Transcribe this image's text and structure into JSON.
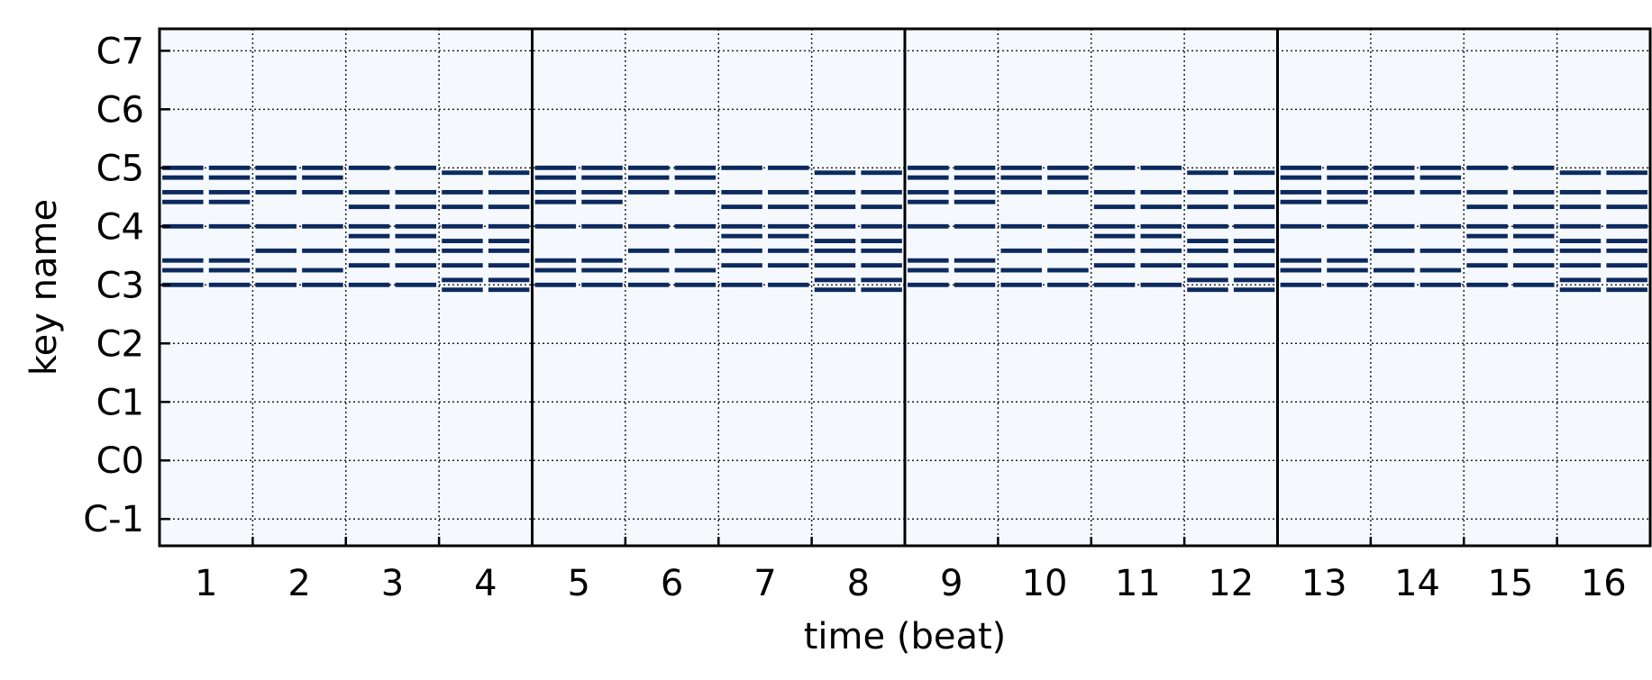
{
  "chart_data": {
    "type": "pianoroll",
    "xlabel": "time (beat)",
    "ylabel": "key name",
    "x_ticks": [
      "1",
      "2",
      "3",
      "4",
      "5",
      "6",
      "7",
      "8",
      "9",
      "10",
      "11",
      "12",
      "13",
      "14",
      "15",
      "16"
    ],
    "y_ticks": [
      {
        "label": "C-1",
        "pitch": 0
      },
      {
        "label": "C0",
        "pitch": 12
      },
      {
        "label": "C1",
        "pitch": 24
      },
      {
        "label": "C2",
        "pitch": 36
      },
      {
        "label": "C3",
        "pitch": 48
      },
      {
        "label": "C4",
        "pitch": 60
      },
      {
        "label": "C5",
        "pitch": 72
      },
      {
        "label": "C6",
        "pitch": 84
      },
      {
        "label": "C7",
        "pitch": 96
      }
    ],
    "xlim": [
      0,
      16
    ],
    "ylim": [
      -5.5,
      100.5
    ],
    "grid": true,
    "downbeat_lines": [
      4,
      8,
      12
    ],
    "note_length_beats": 0.5,
    "repeats_every_beats": 4,
    "pattern": [
      {
        "beat": 1,
        "pitches": [
          48,
          51,
          53,
          60,
          65,
          67,
          70,
          72
        ]
      },
      {
        "beat": 2,
        "pitches": [
          48,
          51,
          55,
          60,
          67,
          70,
          72
        ]
      },
      {
        "beat": 3,
        "pitches": [
          48,
          52,
          55,
          58,
          60,
          64,
          67,
          72
        ]
      },
      {
        "beat": 4,
        "pitches": [
          47,
          49,
          52,
          55,
          57,
          60,
          64,
          67,
          71
        ]
      }
    ],
    "colors": {
      "note": "#0d2a5e",
      "background": "#f5f9fe",
      "grid": "#222222"
    }
  }
}
